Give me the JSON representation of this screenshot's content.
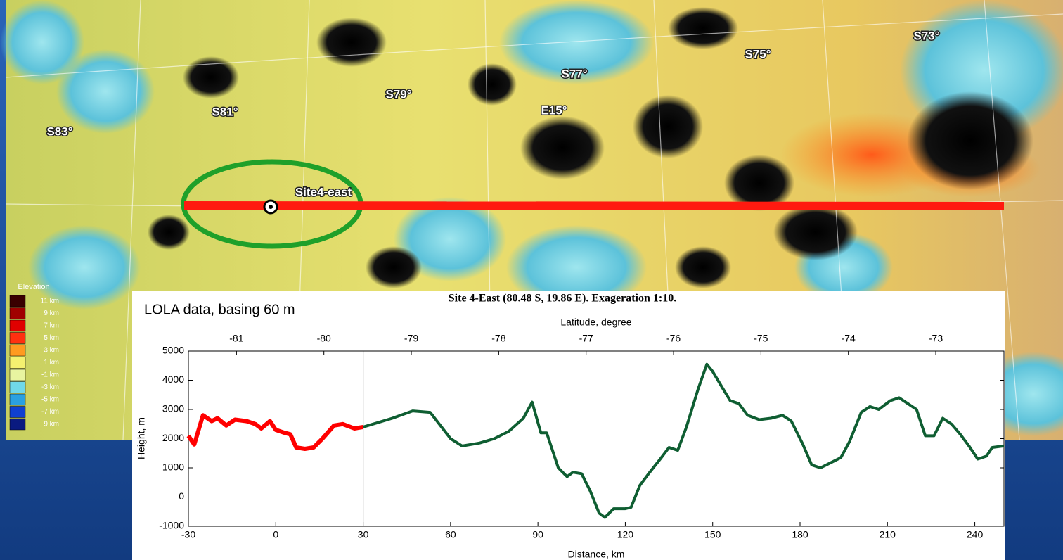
{
  "chart_data": {
    "type": "line",
    "title": "Site 4-East (80.48 S, 19.86 E). Exageration 1:10.",
    "annotation": "LOLA data, basing 60 m",
    "x_label": "Distance, km",
    "y_label": "Height, m",
    "x2_label": "Latitude, degree",
    "xlim": [
      -30,
      250
    ],
    "xticks": [
      -30,
      0,
      30,
      60,
      90,
      120,
      150,
      180,
      210,
      240
    ],
    "ylim": [
      -1000,
      5000
    ],
    "yticks": [
      -1000,
      0,
      1000,
      2000,
      3000,
      4000,
      5000
    ],
    "x2lim": [
      -81.55,
      -72.22
    ],
    "x2ticks": [
      -81,
      -80,
      -79,
      -78,
      -77,
      -76,
      -75,
      -74,
      -73
    ],
    "vline": 30,
    "series": [
      {
        "color": "#ff0000",
        "x": [
          -30,
          -28,
          -25,
          -22,
          -20,
          -17,
          -14,
          -10,
          -7,
          -5,
          -2,
          0,
          3,
          5,
          7,
          10,
          13,
          16,
          20,
          23,
          27,
          30
        ],
        "values": [
          2100,
          1800,
          2800,
          2600,
          2700,
          2450,
          2650,
          2600,
          2500,
          2350,
          2600,
          2300,
          2200,
          2150,
          1700,
          1650,
          1700,
          2000,
          2450,
          2500,
          2350,
          2400
        ]
      },
      {
        "color": "#0f5e32",
        "x": [
          30,
          40,
          47,
          53,
          60,
          64,
          70,
          75,
          80,
          85,
          88,
          91,
          93,
          97,
          100,
          102,
          105,
          108,
          111,
          113,
          116,
          120,
          122,
          125,
          128,
          132,
          135,
          138,
          141,
          145,
          148,
          150,
          153,
          156,
          159,
          162,
          166,
          170,
          174,
          177,
          181,
          184,
          187,
          190,
          194,
          197,
          201,
          204,
          207,
          211,
          214,
          217,
          220,
          223,
          226,
          229,
          232,
          235,
          238,
          241,
          244,
          246,
          250
        ],
        "values": [
          2400,
          2700,
          2950,
          2900,
          2000,
          1750,
          1850,
          2000,
          2250,
          2700,
          3250,
          2200,
          2200,
          1000,
          700,
          850,
          800,
          200,
          -550,
          -700,
          -400,
          -400,
          -350,
          400,
          800,
          1300,
          1700,
          1600,
          2400,
          3700,
          4550,
          4300,
          3800,
          3300,
          3200,
          2800,
          2650,
          2700,
          2800,
          2600,
          1800,
          1100,
          1000,
          1150,
          1350,
          1900,
          2900,
          3100,
          3000,
          3300,
          3400,
          3200,
          3000,
          2100,
          2100,
          2700,
          2500,
          2150,
          1750,
          1300,
          1400,
          1700,
          1750
        ]
      }
    ]
  },
  "map": {
    "labels": [
      "S83°",
      "S81°",
      "S79°",
      "S77°",
      "E15°",
      "S75°",
      "S73°"
    ],
    "site": "Site4-east",
    "legend": {
      "title": "Elevation",
      "labels": [
        "11 km",
        "9 km",
        "7 km",
        "5 km",
        "3 km",
        "1 km",
        "-1 km",
        "-3 km",
        "-5 km",
        "-7 km",
        "-9 km"
      ]
    }
  }
}
